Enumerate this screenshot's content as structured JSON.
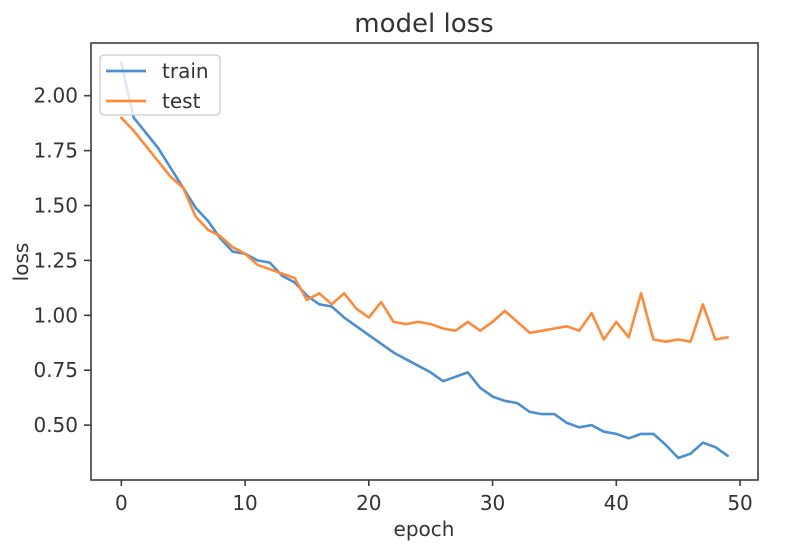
{
  "chart_data": {
    "type": "line",
    "title": "model loss",
    "xlabel": "epoch",
    "ylabel": "loss",
    "grid": false,
    "legend": {
      "position": "upper left",
      "entries": [
        "train",
        "test"
      ]
    },
    "x": [
      0,
      1,
      2,
      3,
      4,
      5,
      6,
      7,
      8,
      9,
      10,
      11,
      12,
      13,
      14,
      15,
      16,
      17,
      18,
      19,
      20,
      21,
      22,
      23,
      24,
      25,
      26,
      27,
      28,
      29,
      30,
      31,
      32,
      33,
      34,
      35,
      36,
      37,
      38,
      39,
      40,
      41,
      42,
      43,
      44,
      45,
      46,
      47,
      48,
      49
    ],
    "series": [
      {
        "name": "train",
        "color": "#4a90cf",
        "values": [
          2.15,
          1.9,
          1.83,
          1.76,
          1.67,
          1.58,
          1.49,
          1.43,
          1.35,
          1.29,
          1.28,
          1.25,
          1.24,
          1.18,
          1.15,
          1.09,
          1.05,
          1.04,
          0.99,
          0.95,
          0.91,
          0.87,
          0.83,
          0.8,
          0.77,
          0.74,
          0.7,
          0.72,
          0.74,
          0.67,
          0.63,
          0.61,
          0.6,
          0.56,
          0.55,
          0.55,
          0.51,
          0.49,
          0.5,
          0.47,
          0.46,
          0.44,
          0.46,
          0.46,
          0.41,
          0.35,
          0.37,
          0.42,
          0.4,
          0.36
        ]
      },
      {
        "name": "test",
        "color": "#fb8b3a",
        "values": [
          1.9,
          1.84,
          1.77,
          1.7,
          1.63,
          1.58,
          1.45,
          1.39,
          1.36,
          1.31,
          1.28,
          1.23,
          1.21,
          1.19,
          1.17,
          1.07,
          1.1,
          1.05,
          1.1,
          1.03,
          0.99,
          1.06,
          0.97,
          0.96,
          0.97,
          0.96,
          0.94,
          0.93,
          0.97,
          0.93,
          0.97,
          1.02,
          0.97,
          0.92,
          0.93,
          0.94,
          0.95,
          0.93,
          1.01,
          0.89,
          0.97,
          0.9,
          1.1,
          0.89,
          0.88,
          0.89,
          0.88,
          1.05,
          0.89,
          0.9
        ]
      }
    ],
    "xlim": [
      -2.45,
      51.45
    ],
    "ylim": [
      0.25,
      2.24
    ],
    "xticks": [
      "0",
      "10",
      "20",
      "30",
      "40",
      "50"
    ],
    "yticks": [
      "0.50",
      "0.75",
      "1.00",
      "1.25",
      "1.50",
      "1.75",
      "2.00"
    ],
    "axis_color": "#3d3d3d",
    "text_color": "#333333"
  }
}
